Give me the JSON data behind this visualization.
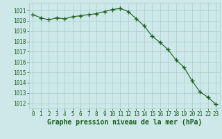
{
  "hours": [
    0,
    1,
    2,
    3,
    4,
    5,
    6,
    7,
    8,
    9,
    10,
    11,
    12,
    13,
    14,
    15,
    16,
    17,
    18,
    19,
    20,
    21,
    22,
    23
  ],
  "pressure": [
    1020.6,
    1020.3,
    1020.1,
    1020.3,
    1020.2,
    1020.4,
    1020.5,
    1020.6,
    1020.7,
    1020.9,
    1021.1,
    1021.2,
    1020.9,
    1020.2,
    1019.5,
    1018.5,
    1017.9,
    1017.2,
    1016.2,
    1015.5,
    1014.2,
    1013.1,
    1012.6,
    1011.9
  ],
  "line_color": "#1a5c1a",
  "marker_color": "#1a5c1a",
  "bg_color": "#cce8e8",
  "grid_color": "#aacccc",
  "xlabel": "Graphe pression niveau de la mer (hPa)",
  "xlabel_color": "#1a5c1a",
  "ylim_min": 1011.5,
  "ylim_max": 1021.75,
  "yticks": [
    1012,
    1013,
    1014,
    1015,
    1016,
    1017,
    1018,
    1019,
    1020,
    1021
  ],
  "tick_color": "#1a5c1a",
  "tick_fontsize": 5.5,
  "xlabel_fontsize": 7.0,
  "marker_size": 4,
  "line_width": 0.8
}
